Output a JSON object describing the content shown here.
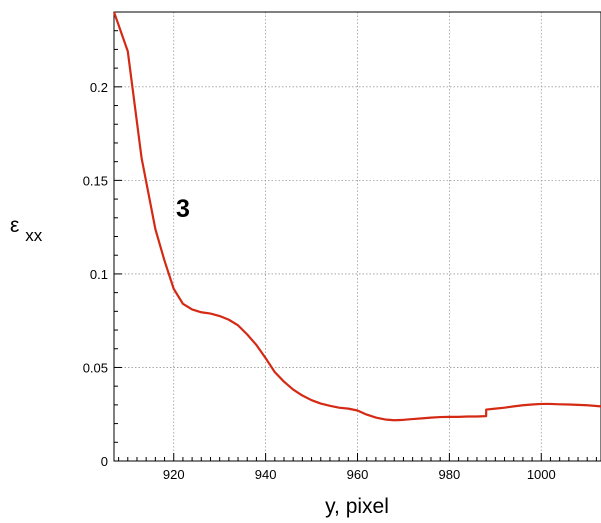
{
  "chart_data": {
    "type": "line",
    "xlabel": "y, pixel",
    "ylabel_main": "ε",
    "ylabel_sub": "xx",
    "annotation": "3",
    "xlim": [
      907,
      1013
    ],
    "ylim": [
      0,
      0.24
    ],
    "x_ticks": [
      920,
      940,
      960,
      980,
      1000
    ],
    "y_ticks": [
      0,
      0.05,
      0.1,
      0.15,
      0.2
    ],
    "y_tick_labels": [
      "0",
      "0.05",
      "0.1",
      "0.15",
      "0.2"
    ],
    "grid": true,
    "series": [
      {
        "color": "#d42a14",
        "x": [
          907,
          910,
          913,
          916,
          918,
          920,
          922,
          924,
          926,
          928,
          930,
          932,
          934,
          936,
          938,
          940,
          942,
          944,
          946,
          948,
          950,
          952,
          954,
          956,
          958,
          960,
          962,
          964,
          966,
          968,
          970,
          972,
          974,
          976,
          978,
          980,
          982,
          984,
          986,
          988,
          988.01,
          990,
          992,
          994,
          996,
          998,
          1000,
          1002,
          1004,
          1006,
          1008,
          1010,
          1013
        ],
        "y": [
          0.24,
          0.219,
          0.162,
          0.124,
          0.107,
          0.092,
          0.084,
          0.081,
          0.0795,
          0.0788,
          0.0775,
          0.0755,
          0.0725,
          0.0676,
          0.062,
          0.055,
          0.0475,
          0.0424,
          0.0382,
          0.035,
          0.0325,
          0.0307,
          0.0295,
          0.0285,
          0.028,
          0.027,
          0.0248,
          0.0232,
          0.0222,
          0.0218,
          0.022,
          0.0224,
          0.0228,
          0.0232,
          0.0235,
          0.0236,
          0.0236,
          0.0238,
          0.0238,
          0.024,
          0.0275,
          0.028,
          0.0285,
          0.0292,
          0.0298,
          0.0302,
          0.0305,
          0.0305,
          0.0303,
          0.0302,
          0.03,
          0.0298,
          0.0292
        ]
      }
    ]
  }
}
